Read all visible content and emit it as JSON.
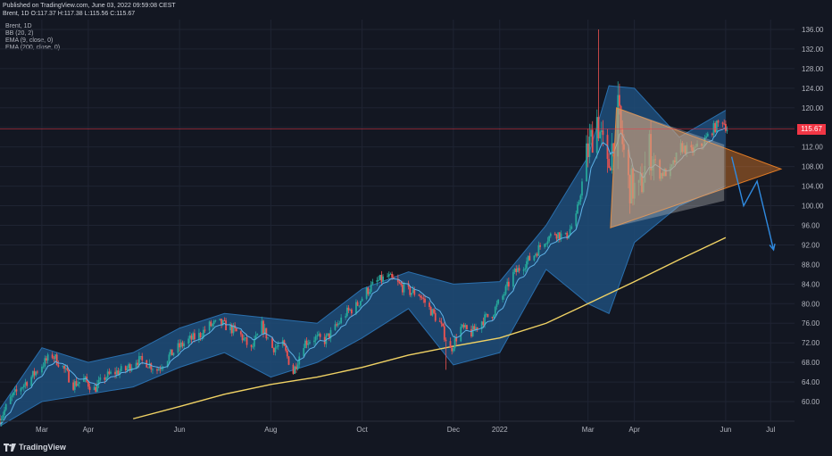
{
  "header": {
    "published_line": "Published on TradingView.com, June 03, 2022 09:59:08 CEST",
    "ohlc_line": "Brent, 1D  O:117.37 H:117.38 L:115.56 C:115.67"
  },
  "legend": {
    "symbol": "Brent, 1D",
    "bb": "BB (20, 2)",
    "ema9": "EMA (9, close, 0)",
    "ema200": "EMA (200, close, 0)"
  },
  "footer": {
    "brand": "TradingView"
  },
  "chart_data": {
    "type": "line",
    "subtype": "candlestick-with-indicators",
    "title": "",
    "xlabel": "",
    "ylabel": "",
    "ylim": [
      56,
      138
    ],
    "y_ticks": [
      60,
      64,
      68,
      72,
      76,
      80,
      84,
      88,
      92,
      96,
      100,
      104,
      108,
      112,
      116,
      120,
      124,
      128,
      132,
      136
    ],
    "y_tick_labels": [
      "60.00",
      "64.00",
      "68.00",
      "72.00",
      "76.00",
      "80.00",
      "84.00",
      "88.00",
      "92.00",
      "96.00",
      "100.00",
      "104.00",
      "108.00",
      "112.00",
      "116.00",
      "120.00",
      "124.00",
      "128.00",
      "132.00",
      "136.00"
    ],
    "x_range": [
      "2021-02-01",
      "2022-07-17"
    ],
    "x_ticks": [
      {
        "date": "2021-03-01",
        "label": "Mar"
      },
      {
        "date": "2021-04-01",
        "label": "Apr"
      },
      {
        "date": "2021-06-01",
        "label": "Jun"
      },
      {
        "date": "2021-08-01",
        "label": "Aug"
      },
      {
        "date": "2021-10-01",
        "label": "Oct"
      },
      {
        "date": "2021-12-01",
        "label": "Dec"
      },
      {
        "date": "2022-01-01",
        "label": "2022"
      },
      {
        "date": "2022-03-01",
        "label": "Mar"
      },
      {
        "date": "2022-04-01",
        "label": "Apr"
      },
      {
        "date": "2022-06-01",
        "label": "Jun"
      },
      {
        "date": "2022-07-01",
        "label": "Jul"
      }
    ],
    "grid": true,
    "last_price": 115.67,
    "last_price_label": "115.67",
    "colors": {
      "background": "#131722",
      "grid": "#1f2433",
      "up": "#26a69a",
      "down": "#ef5350",
      "bb_fill": "#1e4d7a",
      "ema9": "#5fb3e8",
      "ema200": "#f0d264",
      "price_line": "#f23645",
      "triangle_fill": "#e07b25",
      "triangle_inner": "#c8c8c8",
      "arrow": "#2f8ae0"
    },
    "close_series": [
      {
        "date": "2021-02-01",
        "value": 56.5
      },
      {
        "date": "2021-02-08",
        "value": 60.5
      },
      {
        "date": "2021-02-15",
        "value": 63.0
      },
      {
        "date": "2021-02-22",
        "value": 65.0
      },
      {
        "date": "2021-03-01",
        "value": 67.5
      },
      {
        "date": "2021-03-08",
        "value": 69.5
      },
      {
        "date": "2021-03-15",
        "value": 67.0
      },
      {
        "date": "2021-03-22",
        "value": 63.5
      },
      {
        "date": "2021-03-29",
        "value": 64.5
      },
      {
        "date": "2021-04-05",
        "value": 62.5
      },
      {
        "date": "2021-04-12",
        "value": 65.0
      },
      {
        "date": "2021-04-19",
        "value": 66.0
      },
      {
        "date": "2021-04-26",
        "value": 66.5
      },
      {
        "date": "2021-05-03",
        "value": 68.5
      },
      {
        "date": "2021-05-10",
        "value": 68.0
      },
      {
        "date": "2021-05-17",
        "value": 66.5
      },
      {
        "date": "2021-05-24",
        "value": 69.0
      },
      {
        "date": "2021-05-31",
        "value": 71.0
      },
      {
        "date": "2021-06-07",
        "value": 72.5
      },
      {
        "date": "2021-06-14",
        "value": 73.5
      },
      {
        "date": "2021-06-21",
        "value": 75.5
      },
      {
        "date": "2021-06-28",
        "value": 76.0
      },
      {
        "date": "2021-07-05",
        "value": 75.0
      },
      {
        "date": "2021-07-12",
        "value": 73.5
      },
      {
        "date": "2021-07-19",
        "value": 70.5
      },
      {
        "date": "2021-07-26",
        "value": 75.5
      },
      {
        "date": "2021-08-02",
        "value": 71.0
      },
      {
        "date": "2021-08-09",
        "value": 71.5
      },
      {
        "date": "2021-08-16",
        "value": 66.0
      },
      {
        "date": "2021-08-23",
        "value": 72.0
      },
      {
        "date": "2021-08-30",
        "value": 73.0
      },
      {
        "date": "2021-09-06",
        "value": 72.5
      },
      {
        "date": "2021-09-13",
        "value": 75.0
      },
      {
        "date": "2021-09-20",
        "value": 78.0
      },
      {
        "date": "2021-09-27",
        "value": 79.5
      },
      {
        "date": "2021-10-04",
        "value": 82.5
      },
      {
        "date": "2021-10-11",
        "value": 84.5
      },
      {
        "date": "2021-10-18",
        "value": 85.5
      },
      {
        "date": "2021-10-25",
        "value": 84.0
      },
      {
        "date": "2021-11-01",
        "value": 82.5
      },
      {
        "date": "2021-11-08",
        "value": 82.0
      },
      {
        "date": "2021-11-15",
        "value": 79.0
      },
      {
        "date": "2021-11-22",
        "value": 76.0
      },
      {
        "date": "2021-11-29",
        "value": 70.5
      },
      {
        "date": "2021-12-06",
        "value": 75.0
      },
      {
        "date": "2021-12-13",
        "value": 74.0
      },
      {
        "date": "2021-12-20",
        "value": 76.5
      },
      {
        "date": "2021-12-27",
        "value": 78.0
      },
      {
        "date": "2022-01-03",
        "value": 81.5
      },
      {
        "date": "2022-01-10",
        "value": 86.0
      },
      {
        "date": "2022-01-17",
        "value": 88.0
      },
      {
        "date": "2022-01-24",
        "value": 90.0
      },
      {
        "date": "2022-01-31",
        "value": 93.0
      },
      {
        "date": "2022-02-07",
        "value": 94.5
      },
      {
        "date": "2022-02-14",
        "value": 93.5
      },
      {
        "date": "2022-02-21",
        "value": 97.5
      },
      {
        "date": "2022-02-28",
        "value": 110.0
      },
      {
        "date": "2022-03-07",
        "value": 118.0
      },
      {
        "date": "2022-03-14",
        "value": 107.0
      },
      {
        "date": "2022-03-21",
        "value": 119.0
      },
      {
        "date": "2022-03-28",
        "value": 104.5
      },
      {
        "date": "2022-04-04",
        "value": 102.5
      },
      {
        "date": "2022-04-11",
        "value": 111.5
      },
      {
        "date": "2022-04-18",
        "value": 106.5
      },
      {
        "date": "2022-04-25",
        "value": 107.0
      },
      {
        "date": "2022-05-02",
        "value": 112.0
      },
      {
        "date": "2022-05-09",
        "value": 111.0
      },
      {
        "date": "2022-05-16",
        "value": 112.5
      },
      {
        "date": "2022-05-23",
        "value": 115.5
      },
      {
        "date": "2022-05-30",
        "value": 117.5
      },
      {
        "date": "2022-06-02",
        "value": 115.67
      }
    ],
    "ema200_series": [
      {
        "date": "2021-05-01",
        "value": 56.5
      },
      {
        "date": "2021-06-01",
        "value": 59.0
      },
      {
        "date": "2021-07-01",
        "value": 61.5
      },
      {
        "date": "2021-08-01",
        "value": 63.5
      },
      {
        "date": "2021-09-01",
        "value": 65.0
      },
      {
        "date": "2021-10-01",
        "value": 67.0
      },
      {
        "date": "2021-11-01",
        "value": 69.5
      },
      {
        "date": "2021-12-01",
        "value": 71.3
      },
      {
        "date": "2022-01-01",
        "value": 73.0
      },
      {
        "date": "2022-02-01",
        "value": 76.0
      },
      {
        "date": "2022-03-01",
        "value": 80.0
      },
      {
        "date": "2022-04-01",
        "value": 84.5
      },
      {
        "date": "2022-05-01",
        "value": 89.0
      },
      {
        "date": "2022-06-01",
        "value": 93.5
      }
    ],
    "bb_upper": [
      {
        "date": "2021-02-01",
        "value": 58.5
      },
      {
        "date": "2021-03-01",
        "value": 71.0
      },
      {
        "date": "2021-04-01",
        "value": 68.0
      },
      {
        "date": "2021-05-01",
        "value": 70.0
      },
      {
        "date": "2021-06-01",
        "value": 75.0
      },
      {
        "date": "2021-07-01",
        "value": 78.0
      },
      {
        "date": "2021-08-01",
        "value": 77.0
      },
      {
        "date": "2021-09-01",
        "value": 76.0
      },
      {
        "date": "2021-10-01",
        "value": 83.0
      },
      {
        "date": "2021-11-01",
        "value": 86.5
      },
      {
        "date": "2021-12-01",
        "value": 84.0
      },
      {
        "date": "2022-01-01",
        "value": 84.5
      },
      {
        "date": "2022-02-01",
        "value": 96.0
      },
      {
        "date": "2022-03-01",
        "value": 110.0
      },
      {
        "date": "2022-03-15",
        "value": 124.5
      },
      {
        "date": "2022-04-01",
        "value": 124.0
      },
      {
        "date": "2022-05-01",
        "value": 114.0
      },
      {
        "date": "2022-06-01",
        "value": 119.5
      }
    ],
    "bb_lower": [
      {
        "date": "2021-02-01",
        "value": 55.0
      },
      {
        "date": "2021-03-01",
        "value": 60.0
      },
      {
        "date": "2021-04-01",
        "value": 61.5
      },
      {
        "date": "2021-05-01",
        "value": 63.0
      },
      {
        "date": "2021-06-01",
        "value": 67.0
      },
      {
        "date": "2021-07-01",
        "value": 70.0
      },
      {
        "date": "2021-08-01",
        "value": 65.0
      },
      {
        "date": "2021-09-01",
        "value": 68.0
      },
      {
        "date": "2021-10-01",
        "value": 73.0
      },
      {
        "date": "2021-11-01",
        "value": 79.0
      },
      {
        "date": "2021-12-01",
        "value": 67.5
      },
      {
        "date": "2022-01-01",
        "value": 70.0
      },
      {
        "date": "2022-02-01",
        "value": 87.0
      },
      {
        "date": "2022-03-01",
        "value": 80.0
      },
      {
        "date": "2022-03-15",
        "value": 78.0
      },
      {
        "date": "2022-04-01",
        "value": 92.5
      },
      {
        "date": "2022-05-01",
        "value": 100.0
      },
      {
        "date": "2022-06-01",
        "value": 104.0
      }
    ],
    "annotations": {
      "triangle": [
        {
          "date": "2022-03-20",
          "value": 120.0
        },
        {
          "date": "2022-07-08",
          "value": 107.5
        },
        {
          "date": "2022-03-16",
          "value": 95.5
        }
      ],
      "projection_arrow": [
        {
          "date": "2022-06-05",
          "value": 110.0
        },
        {
          "date": "2022-06-13",
          "value": 100.0
        },
        {
          "date": "2022-06-22",
          "value": 105.0
        },
        {
          "date": "2022-07-03",
          "value": 91.0
        }
      ]
    }
  }
}
